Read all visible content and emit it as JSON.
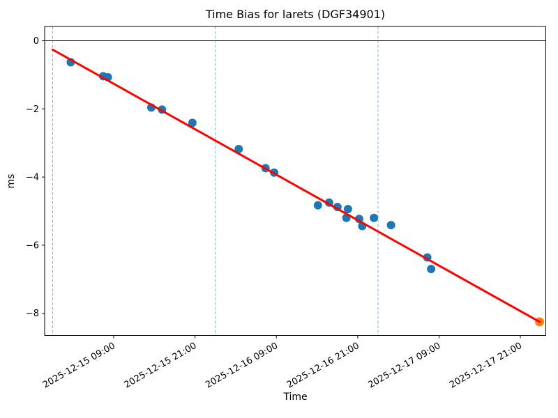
{
  "figure": {
    "title": "Time Bias for larets (DGF34901)",
    "xlabel": "Time",
    "ylabel": "ms"
  },
  "colors": {
    "observed": "#1f77b4",
    "predicted": "#ff7f0e",
    "fit_line": "#ff0000",
    "day_gridline": "#7eb3d8",
    "zero_line": "#000000",
    "spine": "#000000",
    "text": "#000000"
  },
  "chart_data": {
    "type": "scatter",
    "title": "Time Bias for larets (DGF34901)",
    "xlabel": "Time",
    "ylabel": "ms",
    "grid": "day-boundary dashed vertical lines only",
    "legend": "none",
    "x_range": [
      "2025-12-14 22:49",
      "2025-12-18 00:45"
    ],
    "y_range": [
      -8.65,
      0.42
    ],
    "x_tick_labels": [
      "2025-12-15 09:00",
      "2025-12-15 21:00",
      "2025-12-16 09:00",
      "2025-12-16 21:00",
      "2025-12-17 09:00",
      "2025-12-17 21:00"
    ],
    "x_tick_rotation_deg": 30,
    "y_tick_values": [
      0,
      -2,
      -4,
      -6,
      -8
    ],
    "y_tick_labels": [
      "0",
      "−2",
      "−4",
      "−6",
      "−8"
    ],
    "day_gridlines": [
      "2025-12-15 00:00",
      "2025-12-16 00:00",
      "2025-12-17 00:00"
    ],
    "zero_line_y": 0,
    "series": [
      {
        "name": "observed",
        "kind": "scatter",
        "color": "#1f77b4",
        "marker_radius": 6,
        "points": [
          [
            "2025-12-15 02:40",
            -0.63
          ],
          [
            "2025-12-15 07:27",
            -1.04
          ],
          [
            "2025-12-15 08:09",
            -1.07
          ],
          [
            "2025-12-15 14:33",
            -1.96
          ],
          [
            "2025-12-15 16:08",
            -2.02
          ],
          [
            "2025-12-15 20:37",
            -2.41
          ],
          [
            "2025-12-16 03:27",
            -3.18
          ],
          [
            "2025-12-16 07:24",
            -3.74
          ],
          [
            "2025-12-16 08:41",
            -3.87
          ],
          [
            "2025-12-16 15:08",
            -4.83
          ],
          [
            "2025-12-16 16:47",
            -4.75
          ],
          [
            "2025-12-16 18:01",
            -4.88
          ],
          [
            "2025-12-16 19:20",
            -5.2
          ],
          [
            "2025-12-16 19:34",
            -4.94
          ],
          [
            "2025-12-16 21:13",
            -5.23
          ],
          [
            "2025-12-16 21:40",
            -5.44
          ],
          [
            "2025-12-16 23:24",
            -5.2
          ],
          [
            "2025-12-17 01:55",
            -5.41
          ],
          [
            "2025-12-17 07:16",
            -6.36
          ],
          [
            "2025-12-17 07:50",
            -6.7
          ]
        ]
      },
      {
        "name": "predicted",
        "kind": "scatter",
        "color": "#ff7f0e",
        "marker_radius": 6.5,
        "points": [
          [
            "2025-12-17 23:50",
            -8.25
          ]
        ]
      },
      {
        "name": "linear-fit",
        "kind": "line",
        "color": "#ff0000",
        "line_width": 3,
        "points": [
          [
            "2025-12-15 00:00",
            -0.26
          ],
          [
            "2025-12-17 23:50",
            -8.25
          ]
        ]
      }
    ]
  }
}
